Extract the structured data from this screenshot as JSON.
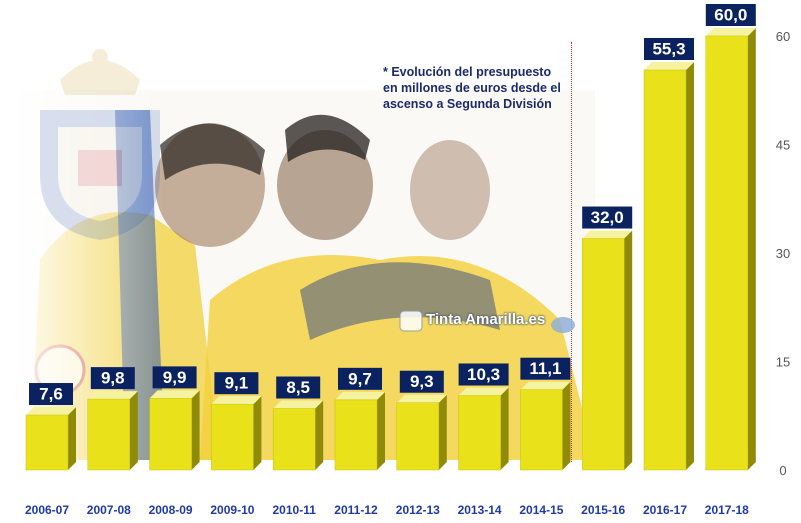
{
  "note": {
    "lines": [
      "* Evolución del presupuesto",
      "en millones de euros desde el",
      "ascenso a Segunda División"
    ]
  },
  "watermark": {
    "text": "Tinta Amarilla.es"
  },
  "colors": {
    "bar_front": "#e9e21a",
    "bar_side": "#8f8a08",
    "bar_top": "#f6f3a0",
    "label_bg": "#0b2260",
    "label_text": "#ffffff",
    "category_text": "#1d3aa8",
    "axis_text": "#555555"
  },
  "chart_data": {
    "type": "bar",
    "categories": [
      "2006-07",
      "2007-08",
      "2008-09",
      "2009-10",
      "2010-11",
      "2011-12",
      "2012-13",
      "2013-14",
      "2014-15",
      "2015-16",
      "2016-17",
      "2017-18"
    ],
    "values": [
      7.6,
      9.8,
      9.9,
      9.1,
      8.5,
      9.7,
      9.3,
      10.3,
      11.1,
      32.0,
      55.3,
      60.0
    ],
    "data_labels": [
      "7,6",
      "9,8",
      "9,9",
      "9,1",
      "8,5",
      "9,7",
      "9,3",
      "10,3",
      "11,1",
      "32,0",
      "55,3",
      "60,0"
    ],
    "yticks": [
      0,
      15,
      30,
      45,
      60
    ],
    "ytick_labels": [
      "0",
      "15",
      "30",
      "45",
      "60"
    ],
    "ylim": [
      0,
      60
    ],
    "grid": false,
    "legend": false
  }
}
